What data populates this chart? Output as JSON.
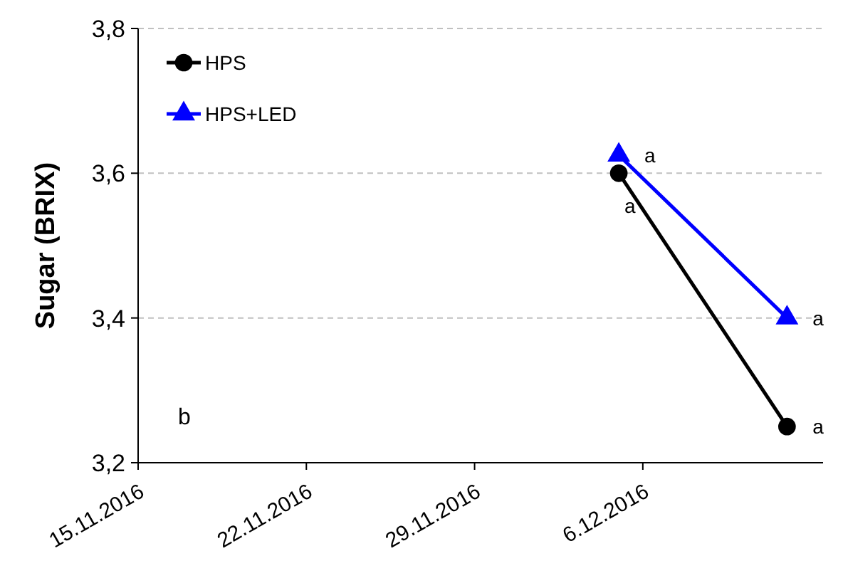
{
  "chart_data": {
    "type": "line",
    "ylabel": "Sugar (BRIX)",
    "x": [
      "2016-12-05",
      "2016-12-12"
    ],
    "series": [
      {
        "name": "HPS",
        "color": "#000000",
        "values": [
          3.6,
          3.25
        ],
        "marker": "circle"
      },
      {
        "name": "HPS+LED",
        "color": "#0000ff",
        "values": [
          3.625,
          3.4
        ],
        "marker": "triangle"
      }
    ],
    "xlim": [
      "2016-11-15",
      "2016-12-13T12:00"
    ],
    "xticks": [
      {
        "value": "2016-11-15",
        "label": "15.11.2016"
      },
      {
        "value": "2016-11-22",
        "label": "22.11.2016"
      },
      {
        "value": "2016-11-29",
        "label": "29.11.2016"
      },
      {
        "value": "2016-12-06",
        "label": "6.12.2016"
      }
    ],
    "ylim": [
      3.2,
      3.8
    ],
    "yticks": [
      {
        "value": 3.2,
        "label": "3,2"
      },
      {
        "value": 3.4,
        "label": "3,4"
      },
      {
        "value": 3.6,
        "label": "3,6"
      },
      {
        "value": 3.8,
        "label": "3,8"
      }
    ],
    "grid": "y",
    "legend": "top left",
    "line_style": "solid",
    "annotations": [
      {
        "text": "a",
        "x": "2016-12-05",
        "y": 3.625
      },
      {
        "text": "a",
        "x": "2016-12-05",
        "y": 3.6
      },
      {
        "text": "a",
        "x": "2016-12-12",
        "y": 3.4
      },
      {
        "text": "a",
        "x": "2016-12-12",
        "y": 3.25
      },
      "b"
    ]
  }
}
